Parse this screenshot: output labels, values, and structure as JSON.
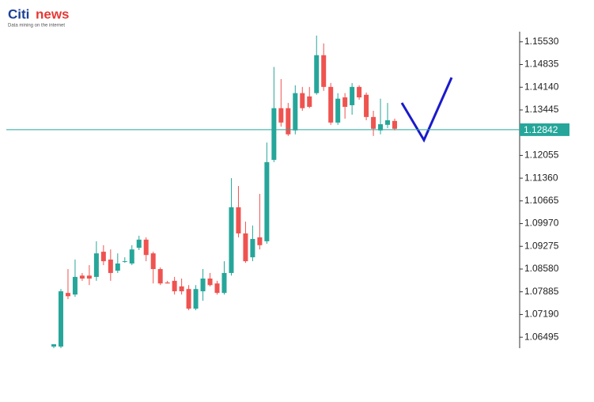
{
  "chart_data": {
    "type": "candlestick",
    "logo": [
      "Citi",
      "news"
    ],
    "logo_tagline": "Data mining on the internet",
    "up_color": "#26a69a",
    "down_color": "#ef5350",
    "open": [
      1.0621,
      1.0621,
      1.0785,
      1.078,
      1.0838,
      1.0838,
      1.0834,
      1.0911,
      1.0887,
      1.0853,
      1.0882,
      1.0875,
      1.0923,
      1.0948,
      1.0906,
      1.0858,
      1.0817,
      1.0822,
      1.0805,
      1.0797,
      1.0737,
      1.079,
      1.0829,
      1.0814,
      1.0785,
      1.0846,
      1.1047,
      1.0967,
      1.0894,
      1.0955,
      1.0943,
      1.1192,
      1.135,
      1.135,
      1.1282,
      1.1396,
      1.1386,
      1.1396,
      1.1512,
      1.1415,
      1.1306,
      1.1383,
      1.1359,
      1.1415,
      1.1391,
      1.1323,
      1.1282,
      1.1299,
      1.1311
    ],
    "high": [
      1.0628,
      1.0797,
      1.0858,
      1.0887,
      1.0846,
      1.087,
      1.0943,
      1.0931,
      1.0918,
      1.0906,
      1.0894,
      1.0931,
      1.096,
      1.0955,
      1.0911,
      1.0863,
      1.0822,
      1.0834,
      1.0829,
      1.0809,
      1.0809,
      1.0858,
      1.0846,
      1.0822,
      1.0882,
      1.1136,
      1.1112,
      1.1003,
      1.0991,
      1.1088,
      1.1245,
      1.1476,
      1.1439,
      1.1366,
      1.142,
      1.1415,
      1.1415,
      1.1572,
      1.1548,
      1.1427,
      1.1396,
      1.1396,
      1.1427,
      1.142,
      1.1398,
      1.1342,
      1.1379,
      1.1366,
      1.1318
    ],
    "low": [
      1.0616,
      1.0616,
      1.0766,
      1.0773,
      1.0822,
      1.0809,
      1.0822,
      1.087,
      1.0822,
      1.0846,
      1.0877,
      1.087,
      1.0916,
      1.0882,
      1.0814,
      1.0809,
      1.0814,
      1.078,
      1.078,
      1.0732,
      1.0732,
      1.0761,
      1.0805,
      1.078,
      1.078,
      1.0838,
      1.0955,
      1.0877,
      1.0882,
      1.0918,
      1.0935,
      1.1185,
      1.1294,
      1.1265,
      1.127,
      1.1342,
      1.135,
      1.1391,
      1.1403,
      1.1299,
      1.1299,
      1.1318,
      1.133,
      1.1376,
      1.1313,
      1.1265,
      1.127,
      1.1289,
      1.1282
    ],
    "close": [
      1.0628,
      1.079,
      1.0775,
      1.0834,
      1.0829,
      1.0829,
      1.0906,
      1.0882,
      1.0846,
      1.0875,
      1.0882,
      1.0918,
      1.0948,
      1.0901,
      1.0858,
      1.0814,
      1.0814,
      1.079,
      1.079,
      1.0737,
      1.0797,
      1.0829,
      1.0809,
      1.0785,
      1.0846,
      1.1047,
      1.0967,
      1.0882,
      1.095,
      1.0931,
      1.1185,
      1.135,
      1.1306,
      1.127,
      1.1396,
      1.135,
      1.1354,
      1.1512,
      1.1415,
      1.1306,
      1.1379,
      1.1354,
      1.1415,
      1.1383,
      1.1323,
      1.1287,
      1.1301,
      1.1313,
      1.1287
    ],
    "last_price": 1.12842,
    "last_price_color": "#26a69a",
    "ylim": [
      1.0616,
      1.1584
    ],
    "yticks": [
      {
        "value": 1.06495,
        "label": "1.06495"
      },
      {
        "value": 1.0719,
        "label": "1.07190"
      },
      {
        "value": 1.07885,
        "label": "1.07885"
      },
      {
        "value": 1.0858,
        "label": "1.08580"
      },
      {
        "value": 1.09275,
        "label": "1.09275"
      },
      {
        "value": 1.0997,
        "label": "1.09970"
      },
      {
        "value": 1.10665,
        "label": "1.10665"
      },
      {
        "value": 1.1136,
        "label": "1.11360"
      },
      {
        "value": 1.12055,
        "label": "1.12055"
      },
      {
        "value": 1.13445,
        "label": "1.13445"
      },
      {
        "value": 1.1414,
        "label": "1.14140"
      },
      {
        "value": 1.14835,
        "label": "1.14835"
      },
      {
        "value": 1.1553,
        "label": "1.15530"
      }
    ]
  }
}
